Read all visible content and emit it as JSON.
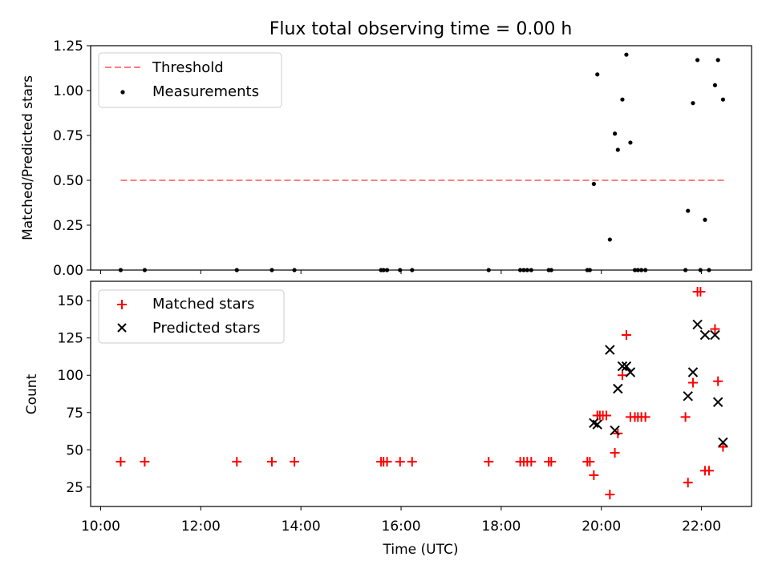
{
  "chart_data": [
    {
      "type": "scatter",
      "title": "Flux total observing time = 0.00 h",
      "xlabel": "",
      "ylabel": "Matched/Predicted stars",
      "ylim": [
        0,
        1.25
      ],
      "xlim_hours": [
        9.8,
        23.0
      ],
      "yticks": [
        "0.00",
        "0.25",
        "0.50",
        "0.75",
        "1.00",
        "1.25"
      ],
      "legend_position": "upper-left",
      "legend": [
        "Threshold",
        "Measurements"
      ],
      "threshold": {
        "name": "Threshold",
        "value": 0.5,
        "x_start": 10.4,
        "x_end": 22.45,
        "color": "#ff7f7f",
        "style": "dashed"
      },
      "series": [
        {
          "name": "Measurements",
          "marker": "dot",
          "color": "#000000",
          "x": [
            10.4,
            10.88,
            12.72,
            13.42,
            13.87,
            15.6,
            15.65,
            15.72,
            15.98,
            16.22,
            17.75,
            18.38,
            18.45,
            18.52,
            18.6,
            18.95,
            19.0,
            19.72,
            19.77,
            19.85,
            19.92,
            20.17,
            20.27,
            20.33,
            20.42,
            20.5,
            20.58,
            20.67,
            20.73,
            20.8,
            20.88,
            21.68,
            21.73,
            21.83,
            21.92,
            21.98,
            22.07,
            22.15,
            22.27,
            22.33,
            22.43
          ],
          "y": [
            0,
            0,
            0,
            0,
            0,
            0,
            0,
            0,
            0,
            0,
            0,
            0,
            0,
            0,
            0,
            0,
            0,
            0,
            0,
            0.48,
            1.09,
            0.17,
            0.76,
            0.67,
            0.95,
            1.2,
            0.71,
            0,
            0,
            0,
            0,
            0,
            0.33,
            0.93,
            1.17,
            0,
            0.28,
            0,
            1.03,
            1.17,
            0.95
          ]
        }
      ]
    },
    {
      "type": "scatter",
      "title": "",
      "xlabel": "Time (UTC)",
      "ylabel": "Count",
      "ylim": [
        12,
        163
      ],
      "xlim_hours": [
        9.8,
        23.0
      ],
      "yticks": [
        "25",
        "50",
        "75",
        "100",
        "125",
        "150"
      ],
      "xticks": [
        "10:00",
        "12:00",
        "14:00",
        "16:00",
        "18:00",
        "20:00",
        "22:00"
      ],
      "legend_position": "upper-left",
      "legend": [
        "Matched stars",
        "Predicted stars"
      ],
      "series": [
        {
          "name": "Matched stars",
          "marker": "plus",
          "color": "#ff0000",
          "x": [
            10.4,
            10.88,
            12.72,
            13.42,
            13.87,
            15.6,
            15.65,
            15.72,
            15.98,
            16.22,
            17.75,
            18.38,
            18.45,
            18.52,
            18.6,
            18.95,
            19.0,
            19.72,
            19.77,
            19.85,
            19.92,
            19.97,
            20.03,
            20.1,
            20.17,
            20.27,
            20.33,
            20.42,
            20.5,
            20.58,
            20.67,
            20.73,
            20.8,
            20.88,
            21.68,
            21.73,
            21.83,
            21.92,
            21.98,
            22.07,
            22.15,
            22.27,
            22.33,
            22.43
          ],
          "y": [
            42,
            42,
            42,
            42,
            42,
            42,
            42,
            42,
            42,
            42,
            42,
            42,
            42,
            42,
            42,
            42,
            42,
            42,
            42,
            33,
            73,
            73,
            73,
            73,
            20,
            48,
            61,
            100,
            127,
            72,
            72,
            72,
            72,
            72,
            72,
            28,
            95,
            156,
            156,
            36,
            36,
            131,
            96,
            52
          ]
        },
        {
          "name": "Predicted stars",
          "marker": "x",
          "color": "#000000",
          "x": [
            19.85,
            19.92,
            20.17,
            20.27,
            20.33,
            20.42,
            20.5,
            20.58,
            21.73,
            21.83,
            21.92,
            22.07,
            22.27,
            22.33,
            22.43
          ],
          "y": [
            68,
            67,
            117,
            63,
            91,
            106,
            106,
            102,
            86,
            102,
            134,
            127,
            127,
            82,
            55
          ]
        }
      ]
    }
  ]
}
